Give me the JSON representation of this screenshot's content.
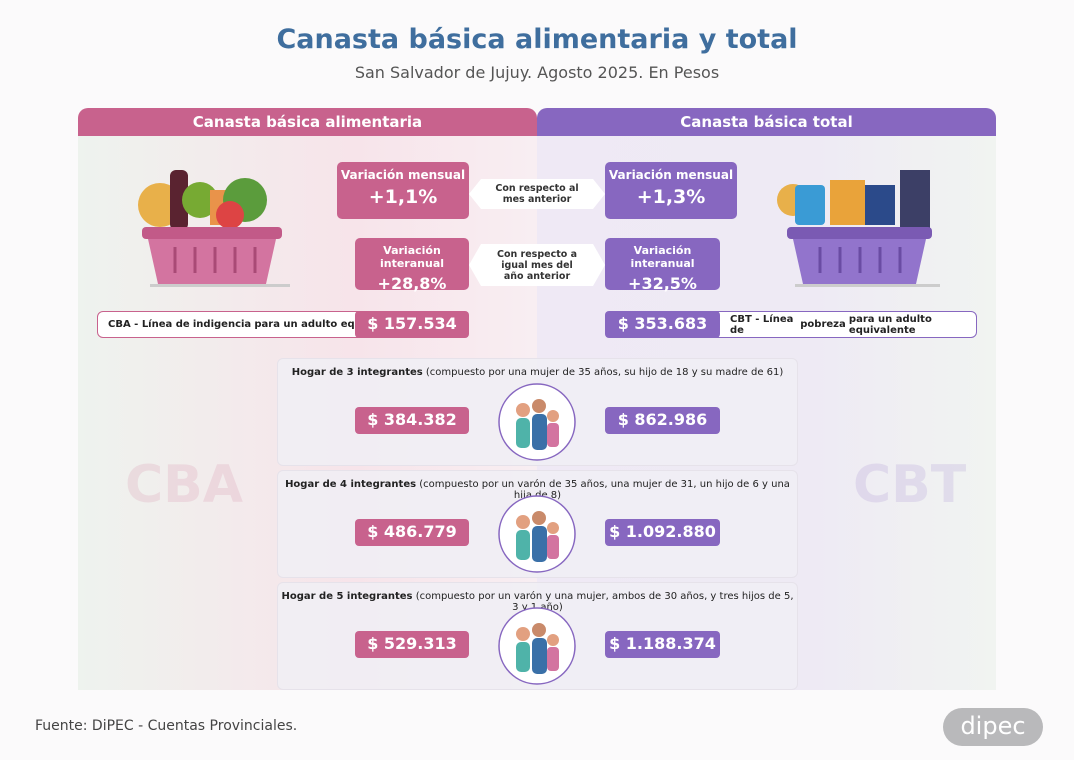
{
  "header": {
    "title": "Canasta básica alimentaria y total",
    "subtitle": "San Salvador de Jujuy. Agosto 2025. En Pesos"
  },
  "left": {
    "heading": "Canasta básica alimentaria",
    "watermark": "CBA",
    "monthly": {
      "label": "Variación mensual",
      "value": "+1,1%"
    },
    "yearly": {
      "label": "Variación interanual",
      "value": "+28,8%"
    },
    "line": {
      "prefix": "CBA - Línea de ",
      "keyword": "indigencia",
      "suffix": " para un adulto equivalente",
      "value": "$ 157.534"
    }
  },
  "right": {
    "heading": "Canasta básica total",
    "watermark": "CBT",
    "monthly": {
      "label": "Variación mensual",
      "value": "+1,3%"
    },
    "yearly": {
      "label": "Variación interanual",
      "value": "+32,5%"
    },
    "line": {
      "prefix": "CBT - Línea de ",
      "keyword": "pobreza",
      "suffix": " para un adulto equivalente",
      "value": "$ 353.683"
    }
  },
  "notes": {
    "monthly": "Con respecto al mes anterior",
    "yearly": "Con respecto a igual mes del año anterior"
  },
  "households": [
    {
      "title": "Hogar de 3 integrantes",
      "detail": "(compuesto por una mujer de 35 años, su hijo de 18 y su madre de 61)",
      "cba": "$ 384.382",
      "cbt": "$ 862.986"
    },
    {
      "title": "Hogar de 4 integrantes",
      "detail": "(compuesto por un varón de 35 años, una mujer de 31, un hijo de 6 y una hija de 8)",
      "cba": "$ 486.779",
      "cbt": "$ 1.092.880"
    },
    {
      "title": "Hogar de 5 integrantes",
      "detail": "(compuesto por un varón y una mujer, ambos de 30 años, y tres hijos de 5, 3 y 1 año)",
      "cba": "$ 529.313",
      "cbt": "$ 1.188.374"
    }
  ],
  "footer": {
    "source": "Fuente: DiPEC - Cuentas Provinciales.",
    "logo": "dipec"
  }
}
